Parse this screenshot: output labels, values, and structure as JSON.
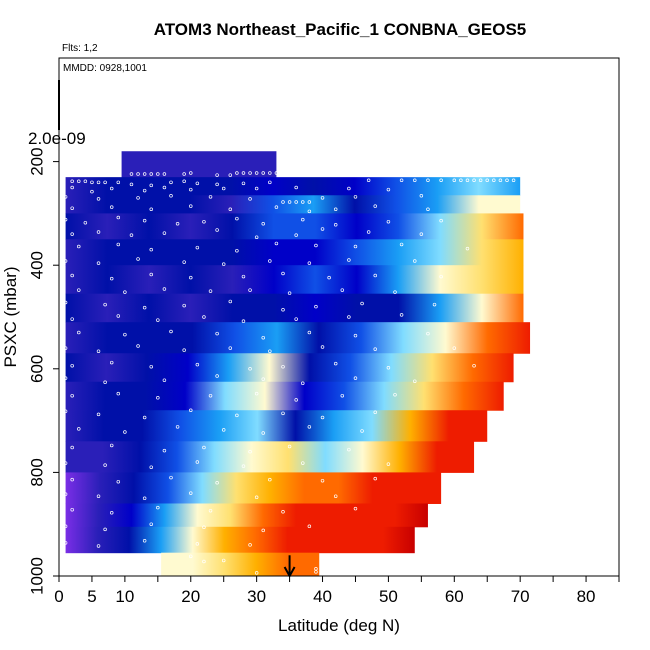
{
  "chart_data": {
    "type": "heatmap",
    "title": "ATOM3 Northeast_Pacific_1 CONBNA_GEOS5",
    "subtitle": "Flts: 1,2",
    "annotation": "MMDD: 0928,1001",
    "xlabel": "Latitude (deg N)",
    "ylabel": "PSXC (mbar)",
    "xlim": [
      0,
      85
    ],
    "ylim": [
      1000,
      0
    ],
    "xticks": [
      0,
      5,
      10,
      20,
      30,
      40,
      50,
      60,
      70,
      80
    ],
    "yticks": [
      200,
      400,
      600,
      800,
      1000
    ],
    "colorbar_value": "2.0e-09",
    "grid": false,
    "arrow_marker": {
      "x": 35,
      "y_top": 960,
      "y_bottom": 1000
    },
    "colormap": [
      "#7a2ee6",
      "#2a1fb8",
      "#0010a8",
      "#0000c8",
      "#1050e6",
      "#1a9ef5",
      "#80dcff",
      "#fffad0",
      "#ffe070",
      "#ffb000",
      "#ff6a00",
      "#ee1c00",
      "#c80000"
    ],
    "bands": [
      {
        "p": [
          180,
          230
        ],
        "x": [
          9.5,
          33
        ],
        "v": [
          0.1,
          0.06,
          0.12,
          0.08
        ]
      },
      {
        "p": [
          230,
          265
        ],
        "x": [
          1,
          70
        ],
        "v": [
          0.12,
          0.18,
          0.14,
          0.16,
          0.18,
          0.26,
          0.16,
          0.22,
          0.36,
          0.45,
          0.52,
          0.4
        ]
      },
      {
        "p": [
          265,
          300
        ],
        "x": [
          1,
          70
        ],
        "v": [
          0.1,
          0.16,
          0.14,
          0.15,
          0.12,
          0.3,
          0.4,
          0.18,
          0.3,
          0.44,
          0.56,
          0.62
        ]
      },
      {
        "p": [
          300,
          350
        ],
        "x": [
          1,
          70.5
        ],
        "v": [
          0.15,
          0.1,
          0.16,
          0.12,
          0.14,
          0.34,
          0.36,
          0.22,
          0.32,
          0.5,
          0.66,
          0.8
        ]
      },
      {
        "p": [
          350,
          400
        ],
        "x": [
          1,
          70.5
        ],
        "v": [
          0.12,
          0.16,
          0.14,
          0.18,
          0.14,
          0.26,
          0.28,
          0.34,
          0.42,
          0.48,
          0.64,
          0.76
        ]
      },
      {
        "p": [
          400,
          455
        ],
        "x": [
          1,
          70.5
        ],
        "v": [
          0.1,
          0.14,
          0.12,
          0.14,
          0.12,
          0.22,
          0.34,
          0.24,
          0.44,
          0.56,
          0.66,
          0.74
        ]
      },
      {
        "p": [
          455,
          510
        ],
        "x": [
          1,
          70.5
        ],
        "v": [
          0.16,
          0.12,
          0.14,
          0.12,
          0.16,
          0.18,
          0.28,
          0.2,
          0.14,
          0.38,
          0.62,
          0.82
        ]
      },
      {
        "p": [
          510,
          570
        ],
        "x": [
          1,
          71.5
        ],
        "v": [
          0.12,
          0.14,
          0.2,
          0.2,
          0.34,
          0.42,
          0.2,
          0.3,
          0.48,
          0.62,
          0.8,
          0.92
        ]
      },
      {
        "p": [
          570,
          625
        ],
        "x": [
          1,
          69
        ],
        "v": [
          0.14,
          0.12,
          0.16,
          0.26,
          0.4,
          0.56,
          0.14,
          0.34,
          0.5,
          0.66,
          0.82,
          0.9
        ]
      },
      {
        "p": [
          625,
          680
        ],
        "x": [
          1,
          67.5
        ],
        "v": [
          0.12,
          0.14,
          0.18,
          0.28,
          0.46,
          0.58,
          0.22,
          0.3,
          0.52,
          0.7,
          0.84,
          0.92
        ]
      },
      {
        "p": [
          680,
          740
        ],
        "x": [
          1,
          65
        ],
        "v": [
          0.1,
          0.16,
          0.18,
          0.3,
          0.44,
          0.5,
          0.2,
          0.44,
          0.54,
          0.72,
          0.88,
          0.94
        ]
      },
      {
        "p": [
          740,
          800
        ],
        "x": [
          1,
          63
        ],
        "v": [
          0.06,
          0.12,
          0.2,
          0.32,
          0.5,
          0.62,
          0.66,
          0.52,
          0.62,
          0.78,
          0.9,
          0.94
        ]
      },
      {
        "p": [
          800,
          860
        ],
        "x": [
          1,
          58
        ],
        "v": [
          0.04,
          0.1,
          0.18,
          0.36,
          0.52,
          0.66,
          0.74,
          0.8,
          0.86,
          0.9,
          0.92,
          0.92
        ]
      },
      {
        "p": [
          860,
          905
        ],
        "x": [
          1,
          56
        ],
        "v": [
          0.02,
          0.08,
          0.26,
          0.4,
          0.56,
          0.7,
          0.84,
          0.9,
          0.92,
          0.94,
          0.95,
          0.96
        ]
      },
      {
        "p": [
          905,
          955
        ],
        "x": [
          1,
          54
        ],
        "v": [
          0.02,
          0.06,
          0.16,
          0.4,
          0.6,
          0.76,
          0.86,
          0.9,
          0.92,
          0.94,
          0.95,
          0.96
        ]
      },
      {
        "p": [
          955,
          1000
        ],
        "x": [
          15.5,
          39.5
        ],
        "v": [
          0.55,
          0.62,
          0.7,
          0.78,
          0.82,
          0.86
        ]
      }
    ],
    "points": [
      [
        11,
        224
      ],
      [
        12,
        224
      ],
      [
        13,
        224
      ],
      [
        14,
        224
      ],
      [
        15,
        224
      ],
      [
        16,
        224
      ],
      [
        19,
        224
      ],
      [
        20,
        222
      ],
      [
        24,
        226
      ],
      [
        26,
        226
      ],
      [
        27,
        222
      ],
      [
        28,
        222
      ],
      [
        29,
        222
      ],
      [
        30,
        222
      ],
      [
        31,
        222
      ],
      [
        32,
        222
      ],
      [
        33,
        222
      ],
      [
        2,
        238
      ],
      [
        3,
        238
      ],
      [
        4,
        238
      ],
      [
        5,
        240
      ],
      [
        6,
        240
      ],
      [
        7,
        240
      ],
      [
        9,
        240
      ],
      [
        11,
        244
      ],
      [
        14,
        246
      ],
      [
        17,
        240
      ],
      [
        19,
        238
      ],
      [
        21,
        242
      ],
      [
        24,
        244
      ],
      [
        28,
        242
      ],
      [
        32,
        240
      ],
      [
        47,
        236
      ],
      [
        52,
        236
      ],
      [
        54,
        236
      ],
      [
        56,
        236
      ],
      [
        58,
        236
      ],
      [
        60,
        236
      ],
      [
        61,
        236
      ],
      [
        62,
        236
      ],
      [
        63,
        236
      ],
      [
        64,
        236
      ],
      [
        65,
        236
      ],
      [
        66,
        236
      ],
      [
        67,
        236
      ],
      [
        68,
        236
      ],
      [
        69,
        236
      ],
      [
        2,
        250
      ],
      [
        5,
        258
      ],
      [
        8,
        252
      ],
      [
        13,
        256
      ],
      [
        16,
        250
      ],
      [
        20,
        254
      ],
      [
        25,
        252
      ],
      [
        30,
        252
      ],
      [
        36,
        250
      ],
      [
        44,
        252
      ],
      [
        50,
        254
      ],
      [
        1,
        268
      ],
      [
        6,
        272
      ],
      [
        12,
        270
      ],
      [
        17,
        266
      ],
      [
        23,
        268
      ],
      [
        29,
        272
      ],
      [
        34,
        278
      ],
      [
        35,
        278
      ],
      [
        36,
        278
      ],
      [
        37,
        278
      ],
      [
        38,
        278
      ],
      [
        40,
        270
      ],
      [
        45,
        268
      ],
      [
        55,
        266
      ],
      [
        2,
        290
      ],
      [
        8,
        288
      ],
      [
        14,
        292
      ],
      [
        20,
        286
      ],
      [
        26,
        292
      ],
      [
        33,
        288
      ],
      [
        38,
        296
      ],
      [
        42,
        292
      ],
      [
        48,
        286
      ],
      [
        56,
        292
      ],
      [
        1,
        312
      ],
      [
        4,
        318
      ],
      [
        9,
        308
      ],
      [
        13,
        314
      ],
      [
        18,
        320
      ],
      [
        22,
        316
      ],
      [
        27,
        310
      ],
      [
        31,
        320
      ],
      [
        37,
        312
      ],
      [
        42,
        322
      ],
      [
        50,
        316
      ],
      [
        58,
        314
      ],
      [
        2,
        340
      ],
      [
        6,
        336
      ],
      [
        11,
        342
      ],
      [
        16,
        338
      ],
      [
        24,
        332
      ],
      [
        30,
        346
      ],
      [
        36,
        342
      ],
      [
        40,
        330
      ],
      [
        47,
        336
      ],
      [
        55,
        340
      ],
      [
        3,
        364
      ],
      [
        9,
        360
      ],
      [
        14,
        370
      ],
      [
        21,
        366
      ],
      [
        27,
        372
      ],
      [
        33,
        358
      ],
      [
        39,
        362
      ],
      [
        45,
        364
      ],
      [
        52,
        360
      ],
      [
        62,
        368
      ],
      [
        1,
        392
      ],
      [
        6,
        396
      ],
      [
        12,
        388
      ],
      [
        19,
        394
      ],
      [
        25,
        398
      ],
      [
        32,
        392
      ],
      [
        38,
        396
      ],
      [
        44,
        390
      ],
      [
        54,
        392
      ],
      [
        2,
        420
      ],
      [
        8,
        426
      ],
      [
        14,
        418
      ],
      [
        20,
        424
      ],
      [
        28,
        422
      ],
      [
        34,
        416
      ],
      [
        41,
        424
      ],
      [
        48,
        420
      ],
      [
        58,
        422
      ],
      [
        3,
        448
      ],
      [
        10,
        452
      ],
      [
        16,
        446
      ],
      [
        23,
        450
      ],
      [
        29,
        448
      ],
      [
        35,
        454
      ],
      [
        43,
        448
      ],
      [
        51,
        452
      ],
      [
        1,
        472
      ],
      [
        7,
        476
      ],
      [
        13,
        482
      ],
      [
        19,
        478
      ],
      [
        26,
        470
      ],
      [
        34,
        486
      ],
      [
        39,
        480
      ],
      [
        46,
        474
      ],
      [
        57,
        476
      ],
      [
        2,
        504
      ],
      [
        9,
        498
      ],
      [
        15,
        506
      ],
      [
        22,
        500
      ],
      [
        28,
        508
      ],
      [
        36,
        504
      ],
      [
        44,
        500
      ],
      [
        52,
        496
      ],
      [
        3,
        530
      ],
      [
        10,
        534
      ],
      [
        17,
        528
      ],
      [
        24,
        532
      ],
      [
        31,
        540
      ],
      [
        38,
        530
      ],
      [
        45,
        536
      ],
      [
        56,
        532
      ],
      [
        1,
        560
      ],
      [
        6,
        566
      ],
      [
        12,
        556
      ],
      [
        19,
        564
      ],
      [
        26,
        560
      ],
      [
        32,
        566
      ],
      [
        40,
        558
      ],
      [
        48,
        562
      ],
      [
        60,
        560
      ],
      [
        2,
        594
      ],
      [
        8,
        588
      ],
      [
        14,
        596
      ],
      [
        21,
        592
      ],
      [
        29,
        600
      ],
      [
        34,
        596
      ],
      [
        42,
        590
      ],
      [
        50,
        598
      ],
      [
        63,
        594
      ],
      [
        1,
        618
      ],
      [
        7,
        626
      ],
      [
        16,
        622
      ],
      [
        24,
        614
      ],
      [
        31,
        620
      ],
      [
        37,
        628
      ],
      [
        45,
        618
      ],
      [
        54,
        624
      ],
      [
        2,
        652
      ],
      [
        9,
        648
      ],
      [
        15,
        656
      ],
      [
        23,
        652
      ],
      [
        30,
        648
      ],
      [
        36,
        660
      ],
      [
        43,
        652
      ],
      [
        51,
        650
      ],
      [
        1,
        682
      ],
      [
        6,
        688
      ],
      [
        13,
        694
      ],
      [
        20,
        680
      ],
      [
        27,
        690
      ],
      [
        34,
        686
      ],
      [
        40,
        694
      ],
      [
        48,
        684
      ],
      [
        3,
        716
      ],
      [
        10,
        722
      ],
      [
        18,
        712
      ],
      [
        25,
        718
      ],
      [
        31,
        724
      ],
      [
        38,
        712
      ],
      [
        46,
        720
      ],
      [
        2,
        752
      ],
      [
        8,
        748
      ],
      [
        16,
        758
      ],
      [
        22,
        752
      ],
      [
        29,
        760
      ],
      [
        35,
        750
      ],
      [
        44,
        756
      ],
      [
        1,
        782
      ],
      [
        7,
        786
      ],
      [
        14,
        790
      ],
      [
        21,
        780
      ],
      [
        28,
        788
      ],
      [
        37,
        782
      ],
      [
        50,
        784
      ],
      [
        2,
        814
      ],
      [
        9,
        818
      ],
      [
        17,
        810
      ],
      [
        24,
        820
      ],
      [
        32,
        814
      ],
      [
        40,
        816
      ],
      [
        48,
        812
      ],
      [
        1,
        842
      ],
      [
        6,
        846
      ],
      [
        13,
        850
      ],
      [
        20,
        840
      ],
      [
        30,
        848
      ],
      [
        42,
        846
      ],
      [
        2,
        872
      ],
      [
        8,
        878
      ],
      [
        15,
        868
      ],
      [
        23,
        874
      ],
      [
        34,
        876
      ],
      [
        45,
        870
      ],
      [
        1,
        904
      ],
      [
        7,
        910
      ],
      [
        14,
        900
      ],
      [
        22,
        906
      ],
      [
        31,
        912
      ],
      [
        38,
        904
      ],
      [
        1,
        936
      ],
      [
        6,
        942
      ],
      [
        13,
        932
      ],
      [
        21,
        938
      ],
      [
        29,
        940
      ],
      [
        2,
        962
      ],
      [
        20,
        962
      ],
      [
        22,
        972
      ],
      [
        25,
        970
      ],
      [
        39,
        986
      ],
      [
        39,
        992
      ],
      [
        30,
        994
      ]
    ]
  }
}
